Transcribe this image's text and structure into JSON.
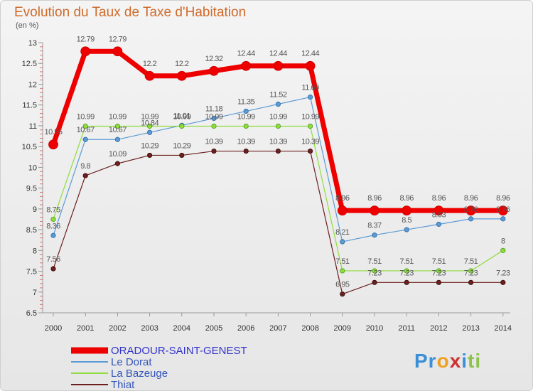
{
  "chart_data": {
    "type": "line",
    "title": "Evolution du Taux de Taxe d'Habitation",
    "subtitle": "(en %)",
    "xlabel": "",
    "ylabel": "(en %)",
    "x": [
      "2000",
      "2001",
      "2002",
      "2003",
      "2004",
      "2005",
      "2006",
      "2007",
      "2008",
      "2009",
      "2010",
      "2011",
      "2012",
      "2013",
      "2014"
    ],
    "ylim": [
      6.5,
      13
    ],
    "yticks": [
      "6.5",
      "7",
      "7.5",
      "8",
      "8.5",
      "9",
      "9.5",
      "10",
      "10.5",
      "11",
      "11.5",
      "12",
      "12.5",
      "13"
    ],
    "grid": false,
    "legend_position": "bottom-left",
    "series": [
      {
        "name": "ORADOUR-SAINT-GENEST",
        "color": "#ee0000",
        "values": [
          10.55,
          12.79,
          12.79,
          12.2,
          12.2,
          12.32,
          12.44,
          12.44,
          12.44,
          8.96,
          8.96,
          8.96,
          8.96,
          8.96,
          8.96
        ],
        "labels": [
          "10.55",
          "12.79",
          "12.79",
          "12.2",
          "12.2",
          "12.32",
          "12.44",
          "12.44",
          "12.44",
          "8.96",
          "8.96",
          "8.96",
          "8.96",
          "8.96",
          "8.96"
        ]
      },
      {
        "name": "Le Dorat",
        "color": "#5b9bd5",
        "values": [
          8.36,
          10.67,
          10.67,
          10.84,
          11.01,
          11.18,
          11.35,
          11.52,
          11.69,
          8.21,
          8.37,
          8.5,
          8.63,
          8.76,
          8.76
        ],
        "labels": [
          "8.36",
          "10.67",
          "10.67",
          "10.84",
          "11.01",
          "11.18",
          "11.35",
          "11.52",
          "11.69",
          "8.21",
          "8.37",
          "8.5",
          "8.63",
          "8.76",
          "8.76"
        ]
      },
      {
        "name": "La Bazeuge",
        "color": "#8fdc3c",
        "values": [
          8.75,
          10.99,
          10.99,
          10.99,
          10.99,
          10.99,
          10.99,
          10.99,
          10.99,
          7.51,
          7.51,
          7.51,
          7.51,
          7.51,
          8
        ],
        "labels": [
          "8.75",
          "10.99",
          "10.99",
          "10.99",
          "10.99",
          "10.99",
          "10.99",
          "10.99",
          "10.99",
          "7.51",
          "7.51",
          "7.51",
          "7.51",
          "7.51",
          "8"
        ]
      },
      {
        "name": "Thiat",
        "color": "#6b1f1f",
        "values": [
          7.56,
          9.8,
          10.09,
          10.29,
          10.29,
          10.39,
          10.39,
          10.39,
          10.39,
          6.95,
          7.23,
          7.23,
          7.23,
          7.23,
          7.23
        ],
        "labels": [
          "7.56",
          "9.8",
          "10.09",
          "10.29",
          "10.29",
          "10.39",
          "10.39",
          "10.39",
          "10.39",
          "6.95",
          "7.23",
          "7.23",
          "7.23",
          "7.23",
          "7.23"
        ]
      }
    ]
  },
  "logo": {
    "parts": [
      {
        "text": "Pr",
        "color": "#3a8fd6"
      },
      {
        "text": "o",
        "color": "#f0a020"
      },
      {
        "text": "x",
        "color": "#d03030"
      },
      {
        "text": "i",
        "color": "#3a8fd6"
      },
      {
        "text": "ti",
        "color": "#8bc34a"
      }
    ]
  }
}
